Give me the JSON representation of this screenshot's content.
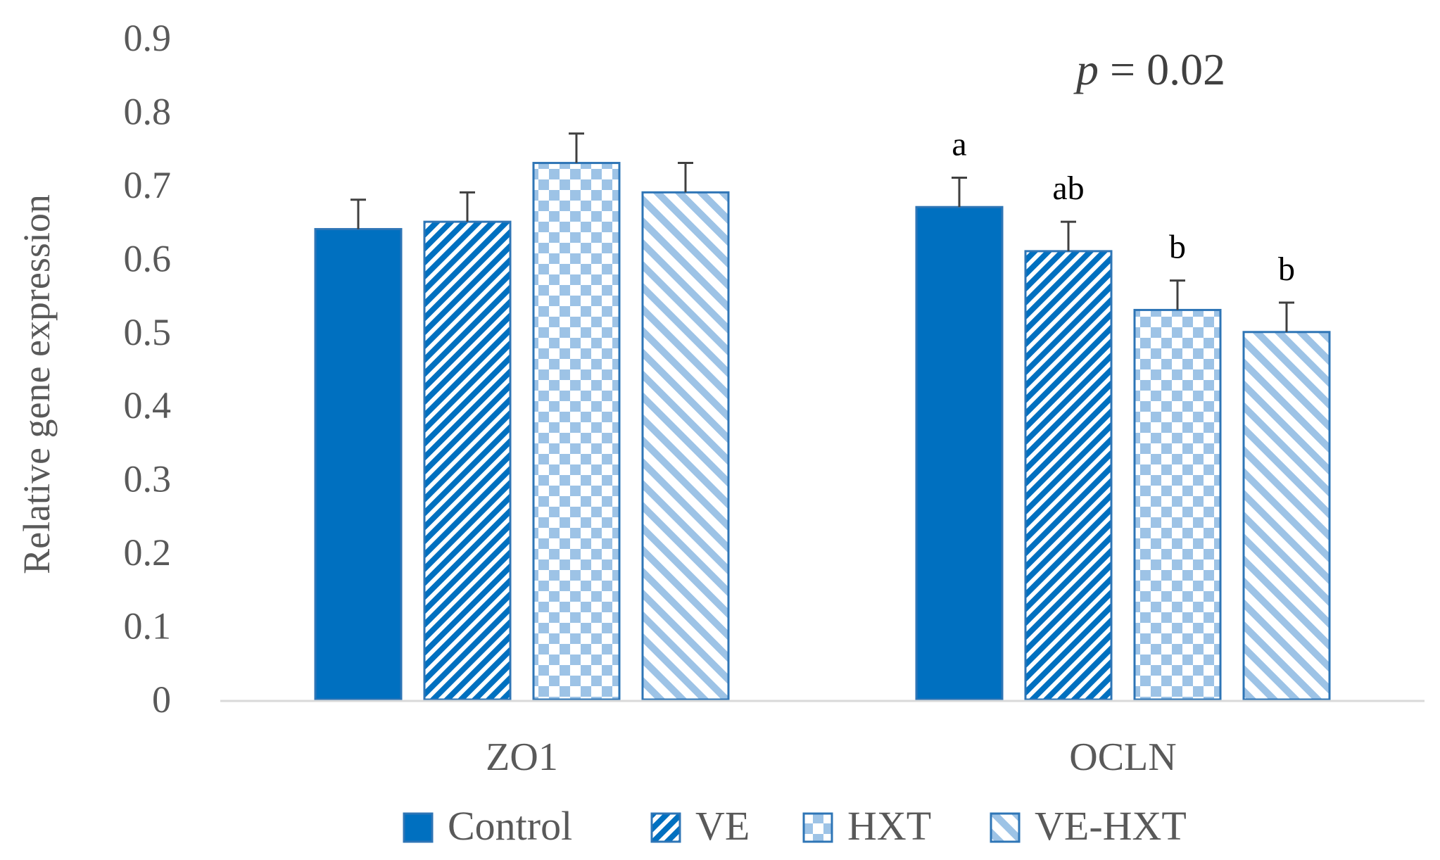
{
  "chart_data": {
    "type": "bar",
    "title": "",
    "xlabel": "",
    "ylabel": "Relative gene expression",
    "ylim": [
      0,
      0.9
    ],
    "yticks": [
      "0",
      "0.1",
      "0.2",
      "0.3",
      "0.4",
      "0.5",
      "0.6",
      "0.7",
      "0.8",
      "0.9"
    ],
    "categories": [
      "ZO1",
      "OCLN"
    ],
    "series": [
      {
        "name": "Control",
        "values": [
          0.64,
          0.67
        ],
        "errors": [
          0.04,
          0.04
        ],
        "pattern": "solid"
      },
      {
        "name": "VE",
        "values": [
          0.65,
          0.61
        ],
        "errors": [
          0.04,
          0.04
        ],
        "pattern": "diagonal-up"
      },
      {
        "name": "HXT",
        "values": [
          0.73,
          0.53
        ],
        "errors": [
          0.04,
          0.04
        ],
        "pattern": "checker"
      },
      {
        "name": "VE-HXT",
        "values": [
          0.69,
          0.5
        ],
        "errors": [
          0.04,
          0.04
        ],
        "pattern": "diagonal-down"
      }
    ],
    "significance_letters": {
      "OCLN": [
        "a",
        "ab",
        "b",
        "b"
      ]
    },
    "annotation": {
      "p_symbol": "p",
      "p_text": " = 0.02"
    },
    "legend_position": "bottom",
    "grid": false
  },
  "colors": {
    "dark_blue": "#0070C0",
    "light_blue": "#9DC3E6",
    "outline": "#2E75B6",
    "axis": "#D9D9D9"
  }
}
